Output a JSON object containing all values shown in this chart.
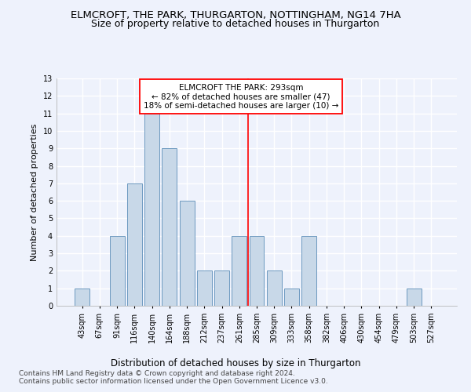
{
  "title": "ELMCROFT, THE PARK, THURGARTON, NOTTINGHAM, NG14 7HA",
  "subtitle": "Size of property relative to detached houses in Thurgarton",
  "xlabel": "Distribution of detached houses by size in Thurgarton",
  "ylabel": "Number of detached properties",
  "bar_labels": [
    "43sqm",
    "67sqm",
    "91sqm",
    "116sqm",
    "140sqm",
    "164sqm",
    "188sqm",
    "212sqm",
    "237sqm",
    "261sqm",
    "285sqm",
    "309sqm",
    "333sqm",
    "358sqm",
    "382sqm",
    "406sqm",
    "430sqm",
    "454sqm",
    "479sqm",
    "503sqm",
    "527sqm"
  ],
  "bar_values": [
    1,
    0,
    4,
    7,
    11,
    9,
    6,
    2,
    2,
    4,
    4,
    2,
    1,
    4,
    0,
    0,
    0,
    0,
    0,
    1,
    0
  ],
  "bar_color": "#c8d8e8",
  "bar_edge_color": "#5b8db8",
  "vline_x": 9.5,
  "annotation_text_lines": [
    "ELMCROFT THE PARK: 293sqm",
    "← 82% of detached houses are smaller (47)",
    "18% of semi-detached houses are larger (10) →"
  ],
  "annotation_box_color": "white",
  "annotation_box_edge_color": "red",
  "vline_color": "red",
  "ylim": [
    0,
    13
  ],
  "yticks": [
    0,
    1,
    2,
    3,
    4,
    5,
    6,
    7,
    8,
    9,
    10,
    11,
    12,
    13
  ],
  "footer_line1": "Contains HM Land Registry data © Crown copyright and database right 2024.",
  "footer_line2": "Contains public sector information licensed under the Open Government Licence v3.0.",
  "bg_color": "#eef2fc",
  "grid_color": "white",
  "title_fontsize": 9.5,
  "subtitle_fontsize": 9,
  "ylabel_fontsize": 8,
  "xlabel_fontsize": 8.5,
  "tick_fontsize": 7,
  "annotation_fontsize": 7.5,
  "footer_fontsize": 6.5
}
